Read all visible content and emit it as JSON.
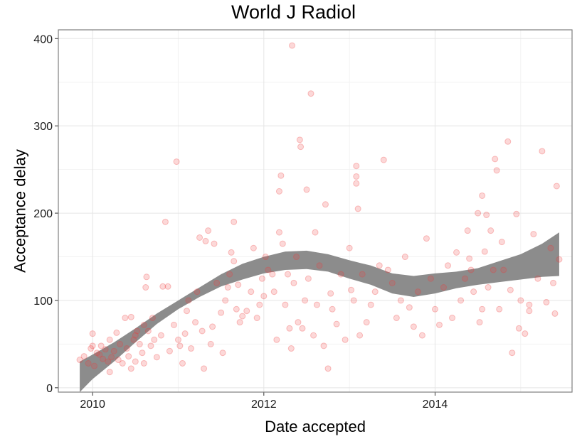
{
  "chart_data": {
    "type": "scatter",
    "title": "World J Radiol",
    "xlabel": "Date accepted",
    "ylabel": "Acceptance delay",
    "xlim": [
      2009.6,
      2015.6
    ],
    "ylim": [
      -5,
      410
    ],
    "x_ticks": [
      2010,
      2012,
      2014
    ],
    "y_ticks": [
      0,
      100,
      200,
      300,
      400
    ],
    "grid": true,
    "point_color": "#f03c3c",
    "band_color": "#8c8c8c",
    "points": [
      [
        2009.85,
        32
      ],
      [
        2009.9,
        36
      ],
      [
        2009.95,
        28
      ],
      [
        2009.98,
        45
      ],
      [
        2010.0,
        62
      ],
      [
        2010.0,
        48
      ],
      [
        2010.02,
        25
      ],
      [
        2010.05,
        40
      ],
      [
        2010.08,
        38
      ],
      [
        2010.1,
        48
      ],
      [
        2010.12,
        33
      ],
      [
        2010.15,
        44
      ],
      [
        2010.18,
        30
      ],
      [
        2010.2,
        55
      ],
      [
        2010.2,
        18
      ],
      [
        2010.22,
        35
      ],
      [
        2010.25,
        42
      ],
      [
        2010.28,
        63
      ],
      [
        2010.3,
        32
      ],
      [
        2010.32,
        50
      ],
      [
        2010.35,
        28
      ],
      [
        2010.38,
        80
      ],
      [
        2010.4,
        45
      ],
      [
        2010.42,
        36
      ],
      [
        2010.45,
        81
      ],
      [
        2010.45,
        22
      ],
      [
        2010.48,
        55
      ],
      [
        2010.5,
        60
      ],
      [
        2010.5,
        30
      ],
      [
        2010.52,
        65
      ],
      [
        2010.55,
        50
      ],
      [
        2010.58,
        40
      ],
      [
        2010.6,
        72
      ],
      [
        2010.6,
        28
      ],
      [
        2010.62,
        115
      ],
      [
        2010.63,
        127
      ],
      [
        2010.65,
        65
      ],
      [
        2010.68,
        48
      ],
      [
        2010.7,
        80
      ],
      [
        2010.72,
        55
      ],
      [
        2010.75,
        35
      ],
      [
        2010.8,
        60
      ],
      [
        2010.82,
        116
      ],
      [
        2010.85,
        190
      ],
      [
        2010.88,
        116
      ],
      [
        2010.9,
        42
      ],
      [
        2010.95,
        72
      ],
      [
        2010.98,
        259
      ],
      [
        2011.0,
        55
      ],
      [
        2011.02,
        48
      ],
      [
        2011.05,
        28
      ],
      [
        2011.08,
        62
      ],
      [
        2011.1,
        88
      ],
      [
        2011.12,
        100
      ],
      [
        2011.15,
        45
      ],
      [
        2011.2,
        75
      ],
      [
        2011.22,
        110
      ],
      [
        2011.25,
        172
      ],
      [
        2011.28,
        65
      ],
      [
        2011.3,
        22
      ],
      [
        2011.32,
        168
      ],
      [
        2011.35,
        180
      ],
      [
        2011.38,
        50
      ],
      [
        2011.4,
        70
      ],
      [
        2011.42,
        165
      ],
      [
        2011.45,
        120
      ],
      [
        2011.5,
        86
      ],
      [
        2011.52,
        40
      ],
      [
        2011.55,
        100
      ],
      [
        2011.58,
        115
      ],
      [
        2011.6,
        130
      ],
      [
        2011.62,
        155
      ],
      [
        2011.65,
        190
      ],
      [
        2011.65,
        145
      ],
      [
        2011.68,
        90
      ],
      [
        2011.7,
        118
      ],
      [
        2011.72,
        75
      ],
      [
        2011.75,
        82
      ],
      [
        2011.8,
        88
      ],
      [
        2011.85,
        110
      ],
      [
        2011.88,
        160
      ],
      [
        2011.92,
        80
      ],
      [
        2011.95,
        95
      ],
      [
        2011.98,
        125
      ],
      [
        2012.0,
        105
      ],
      [
        2012.02,
        150
      ],
      [
        2012.05,
        135
      ],
      [
        2012.1,
        130
      ],
      [
        2012.12,
        110
      ],
      [
        2012.15,
        55
      ],
      [
        2012.18,
        225
      ],
      [
        2012.18,
        178
      ],
      [
        2012.2,
        243
      ],
      [
        2012.22,
        165
      ],
      [
        2012.25,
        95
      ],
      [
        2012.28,
        130
      ],
      [
        2012.3,
        68
      ],
      [
        2012.32,
        45
      ],
      [
        2012.33,
        392
      ],
      [
        2012.35,
        120
      ],
      [
        2012.38,
        150
      ],
      [
        2012.4,
        75
      ],
      [
        2012.42,
        284
      ],
      [
        2012.43,
        276
      ],
      [
        2012.45,
        68
      ],
      [
        2012.48,
        100
      ],
      [
        2012.5,
        227
      ],
      [
        2012.52,
        125
      ],
      [
        2012.55,
        337
      ],
      [
        2012.58,
        60
      ],
      [
        2012.6,
        178
      ],
      [
        2012.62,
        95
      ],
      [
        2012.65,
        140
      ],
      [
        2012.7,
        48
      ],
      [
        2012.72,
        210
      ],
      [
        2012.75,
        22
      ],
      [
        2012.78,
        108
      ],
      [
        2012.8,
        90
      ],
      [
        2012.85,
        73
      ],
      [
        2012.9,
        130
      ],
      [
        2012.95,
        55
      ],
      [
        2013.0,
        160
      ],
      [
        2013.02,
        112
      ],
      [
        2013.05,
        100
      ],
      [
        2013.08,
        254
      ],
      [
        2013.08,
        242
      ],
      [
        2013.08,
        234
      ],
      [
        2013.1,
        205
      ],
      [
        2013.12,
        60
      ],
      [
        2013.15,
        130
      ],
      [
        2013.2,
        75
      ],
      [
        2013.25,
        95
      ],
      [
        2013.3,
        110
      ],
      [
        2013.35,
        140
      ],
      [
        2013.4,
        261
      ],
      [
        2013.45,
        135
      ],
      [
        2013.5,
        120
      ],
      [
        2013.55,
        80
      ],
      [
        2013.6,
        100
      ],
      [
        2013.65,
        150
      ],
      [
        2013.7,
        92
      ],
      [
        2013.75,
        70
      ],
      [
        2013.8,
        110
      ],
      [
        2013.85,
        60
      ],
      [
        2013.9,
        171
      ],
      [
        2013.95,
        125
      ],
      [
        2014.0,
        90
      ],
      [
        2014.05,
        72
      ],
      [
        2014.1,
        115
      ],
      [
        2014.15,
        140
      ],
      [
        2014.2,
        80
      ],
      [
        2014.25,
        155
      ],
      [
        2014.3,
        100
      ],
      [
        2014.35,
        125
      ],
      [
        2014.38,
        180
      ],
      [
        2014.4,
        148
      ],
      [
        2014.42,
        135
      ],
      [
        2014.45,
        110
      ],
      [
        2014.5,
        200
      ],
      [
        2014.52,
        75
      ],
      [
        2014.55,
        220
      ],
      [
        2014.58,
        156
      ],
      [
        2014.6,
        198
      ],
      [
        2014.62,
        115
      ],
      [
        2014.65,
        180
      ],
      [
        2014.68,
        135
      ],
      [
        2014.7,
        262
      ],
      [
        2014.72,
        249
      ],
      [
        2014.75,
        90
      ],
      [
        2014.78,
        167
      ],
      [
        2014.8,
        135
      ],
      [
        2014.85,
        282
      ],
      [
        2014.88,
        112
      ],
      [
        2014.9,
        40
      ],
      [
        2014.95,
        199
      ],
      [
        2015.0,
        100
      ],
      [
        2015.05,
        62
      ],
      [
        2015.1,
        95
      ],
      [
        2015.15,
        176
      ],
      [
        2015.2,
        125
      ],
      [
        2015.25,
        271
      ],
      [
        2015.3,
        98
      ],
      [
        2015.35,
        160
      ],
      [
        2015.38,
        120
      ],
      [
        2015.42,
        231
      ],
      [
        2015.45,
        147
      ],
      [
        2015.4,
        85
      ],
      [
        2015.1,
        88
      ],
      [
        2014.98,
        68
      ],
      [
        2014.55,
        90
      ]
    ],
    "band_lower": [
      [
        2009.85,
        -5
      ],
      [
        2010.0,
        10
      ],
      [
        2010.25,
        30
      ],
      [
        2010.5,
        52
      ],
      [
        2010.75,
        73
      ],
      [
        2011.0,
        90
      ],
      [
        2011.25,
        104
      ],
      [
        2011.5,
        116
      ],
      [
        2011.75,
        124
      ],
      [
        2012.0,
        131
      ],
      [
        2012.25,
        135
      ],
      [
        2012.5,
        136
      ],
      [
        2012.75,
        133
      ],
      [
        2013.0,
        125
      ],
      [
        2013.25,
        118
      ],
      [
        2013.5,
        108
      ],
      [
        2013.75,
        104
      ],
      [
        2014.0,
        108
      ],
      [
        2014.25,
        114
      ],
      [
        2014.5,
        118
      ],
      [
        2014.75,
        121
      ],
      [
        2015.0,
        124
      ],
      [
        2015.25,
        127
      ],
      [
        2015.45,
        128
      ]
    ],
    "band_upper": [
      [
        2009.85,
        30
      ],
      [
        2010.0,
        38
      ],
      [
        2010.25,
        52
      ],
      [
        2010.5,
        68
      ],
      [
        2010.75,
        85
      ],
      [
        2011.0,
        100
      ],
      [
        2011.25,
        115
      ],
      [
        2011.5,
        130
      ],
      [
        2011.75,
        142
      ],
      [
        2012.0,
        150
      ],
      [
        2012.25,
        156
      ],
      [
        2012.5,
        157
      ],
      [
        2012.75,
        153
      ],
      [
        2013.0,
        146
      ],
      [
        2013.25,
        140
      ],
      [
        2013.5,
        131
      ],
      [
        2013.75,
        128
      ],
      [
        2014.0,
        131
      ],
      [
        2014.25,
        133
      ],
      [
        2014.5,
        137
      ],
      [
        2014.75,
        145
      ],
      [
        2015.0,
        153
      ],
      [
        2015.25,
        165
      ],
      [
        2015.45,
        178
      ]
    ]
  }
}
